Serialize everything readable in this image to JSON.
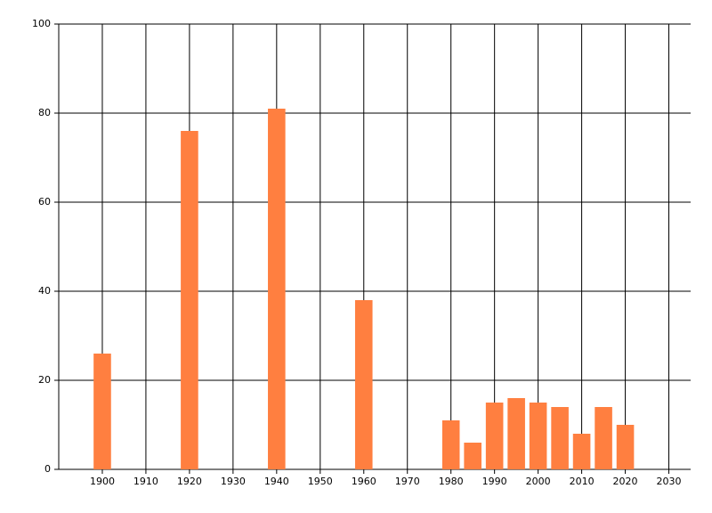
{
  "chart_data": {
    "type": "bar",
    "x": [
      1900,
      1920,
      1940,
      1960,
      1980,
      1985,
      1990,
      1995,
      2000,
      2005,
      2010,
      2015,
      2020
    ],
    "values": [
      26,
      76,
      81,
      38,
      11,
      6,
      15,
      16,
      15,
      14,
      8,
      14,
      10
    ],
    "color": "#ff7f40",
    "xlim": [
      1890,
      2035
    ],
    "xticks": [
      1900,
      1910,
      1920,
      1930,
      1940,
      1950,
      1960,
      1970,
      1980,
      1990,
      2000,
      2010,
      2020,
      2030
    ],
    "ylim": [
      0,
      100
    ],
    "yticks": [
      0,
      20,
      40,
      60,
      80,
      100
    ],
    "grid": true
  }
}
